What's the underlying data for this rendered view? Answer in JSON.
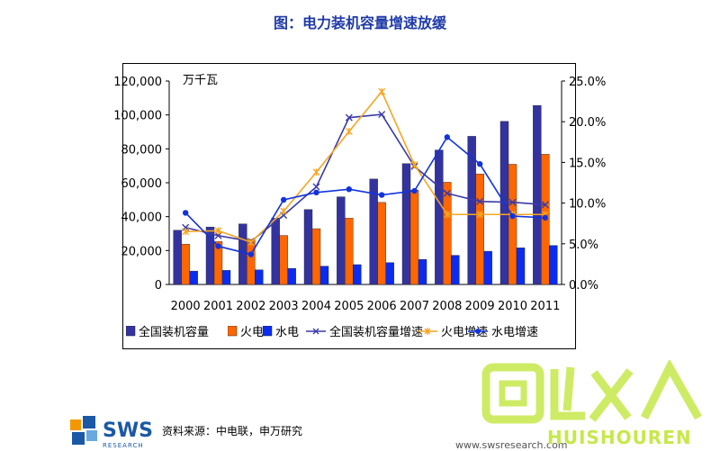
{
  "title": "图：电力装机容量增速放缓",
  "unit_label": "万千瓦",
  "source": "资料来源：中电联，申万研究",
  "footer_url": "www.swsresearch.com",
  "logo_text": "SWS",
  "logo_sub": "RESEARCH",
  "watermark_text": "HUISHOUREN",
  "colors": {
    "total_bar": "#3333a0",
    "thermal_bar": "#ff6600",
    "hydro_bar": "#0a2cf0",
    "total_growth_line": "#3a3aa8",
    "thermal_growth_line": "#f5a623",
    "hydro_growth_line": "#1133dd",
    "title": "#1f3aa8",
    "watermark": "#c6e84a"
  },
  "chart_data": {
    "type": "bar",
    "categories": [
      "2000",
      "2001",
      "2002",
      "2003",
      "2004",
      "2005",
      "2006",
      "2007",
      "2008",
      "2009",
      "2010",
      "2011"
    ],
    "ylim": [
      0,
      120000
    ],
    "y_ticks": [
      "0",
      "20,000",
      "40,000",
      "60,000",
      "80,000",
      "100,000",
      "120,000"
    ],
    "y2lim": [
      0,
      25
    ],
    "y2_ticks": [
      "0.0%",
      "5.0%",
      "10.0%",
      "15.0%",
      "20.0%",
      "25.0%"
    ],
    "grid": false,
    "legend_position": "bottom",
    "series": [
      {
        "name": "全国装机容量",
        "type": "bar",
        "axis": "left",
        "values": [
          32000,
          33900,
          35700,
          39100,
          44200,
          51700,
          62200,
          71300,
          79300,
          87400,
          96200,
          105600
        ]
      },
      {
        "name": "火电",
        "type": "bar",
        "axis": "left",
        "values": [
          23800,
          25300,
          26600,
          28900,
          32900,
          39100,
          48400,
          55600,
          60300,
          65200,
          70900,
          76800
        ]
      },
      {
        "name": "水电",
        "type": "bar",
        "axis": "left",
        "values": [
          7900,
          8300,
          8600,
          9500,
          10800,
          11700,
          12900,
          14800,
          17200,
          19600,
          21600,
          23000
        ]
      },
      {
        "name": "全国装机容量增速",
        "type": "line",
        "axis": "right",
        "marker": "x",
        "values": [
          7.0,
          6.0,
          5.3,
          8.5,
          12.0,
          20.5,
          20.9,
          14.5,
          11.2,
          10.2,
          10.1,
          9.8
        ]
      },
      {
        "name": "火电增速",
        "type": "line",
        "axis": "right",
        "marker": "asterisk",
        "values": [
          6.5,
          6.6,
          5.2,
          9.0,
          13.8,
          18.8,
          23.7,
          14.7,
          8.6,
          8.6,
          8.6,
          8.6
        ]
      },
      {
        "name": "水电增速",
        "type": "line",
        "axis": "right",
        "marker": "dot",
        "values": [
          8.8,
          4.7,
          3.7,
          10.4,
          11.3,
          11.7,
          11.0,
          11.5,
          18.1,
          14.8,
          8.4,
          8.2
        ]
      }
    ]
  }
}
